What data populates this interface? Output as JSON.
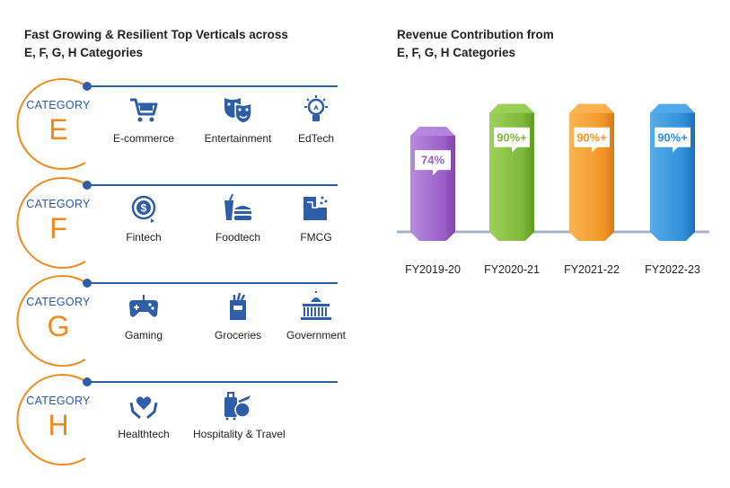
{
  "left_panel": {
    "title_line1": "Fast Growing & Resilient Top Verticals across",
    "title_line2": "E, F, G, H Categories",
    "category_word": "CATEGORY",
    "categories": [
      {
        "letter": "E",
        "verticals": [
          {
            "label": "E-commerce",
            "icon": "shopping-cart-icon"
          },
          {
            "label": "Entertainment",
            "icon": "theater-masks-icon"
          },
          {
            "label": "EdTech",
            "icon": "lightbulb-icon"
          }
        ]
      },
      {
        "letter": "F",
        "verticals": [
          {
            "label": "Fintech",
            "icon": "dollar-coin-icon"
          },
          {
            "label": "Foodtech",
            "icon": "burger-drink-icon"
          },
          {
            "label": "FMCG",
            "icon": "products-icon"
          }
        ]
      },
      {
        "letter": "G",
        "verticals": [
          {
            "label": "Gaming",
            "icon": "gamepad-icon"
          },
          {
            "label": "Groceries",
            "icon": "grocery-bag-icon"
          },
          {
            "label": "Government",
            "icon": "capitol-building-icon"
          }
        ]
      },
      {
        "letter": "H",
        "verticals": [
          {
            "label": "Healthtech",
            "icon": "heart-hands-icon"
          },
          {
            "label": "Hospitality & Travel",
            "icon": "luggage-plane-icon"
          }
        ]
      }
    ]
  },
  "colors": {
    "blue_text": "#2a5aa8",
    "orange": "#f08a1c",
    "icon_blue": "#2e5ea8",
    "baseline": "#a9b3c6"
  },
  "chart_data": {
    "type": "bar",
    "title_line1": "Revenue Contribution from",
    "title_line2": "E, F, G, H Categories",
    "categories": [
      "FY2019-20",
      "FY2020-21",
      "FY2021-22",
      "FY2022-23"
    ],
    "values": [
      74,
      90,
      90,
      90
    ],
    "value_labels": [
      "74%",
      "90%+",
      "90%+",
      "90%+"
    ],
    "bar_colors": [
      "#9a5fc8",
      "#7cb83a",
      "#f3962a",
      "#2f8fd8"
    ],
    "bar_colors_light": [
      "#b98ae0",
      "#9ed15a",
      "#fbb454",
      "#55acea"
    ],
    "bar_colors_dark": [
      "#7d45ab",
      "#5f9a22",
      "#d67a12",
      "#1c6fb8"
    ],
    "ylim": [
      0,
      100
    ]
  }
}
